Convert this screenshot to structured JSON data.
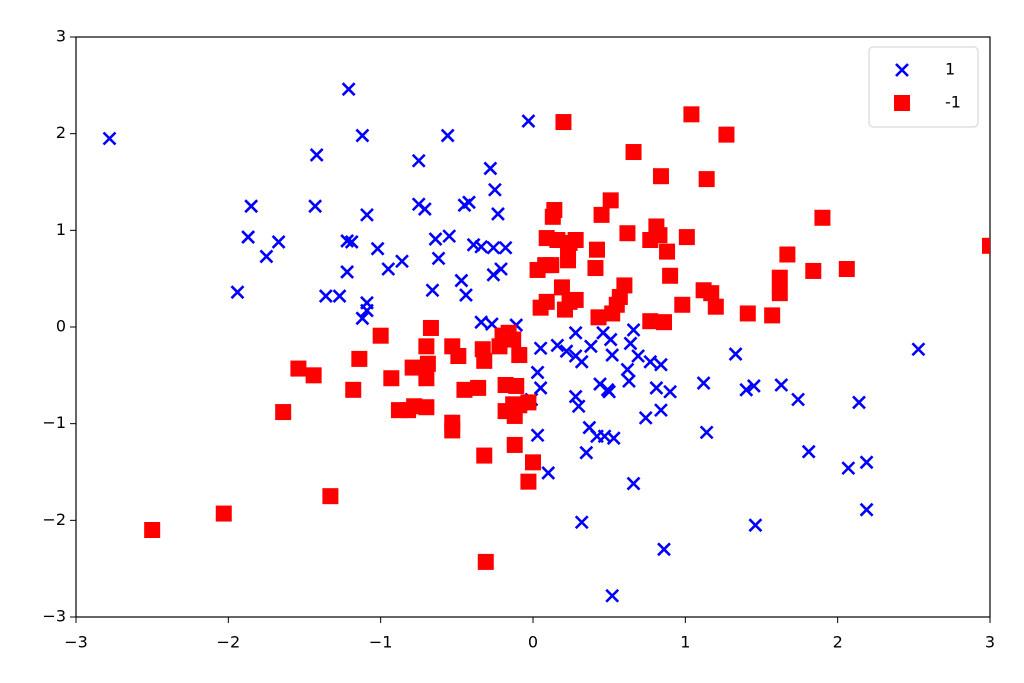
{
  "chart_data": {
    "type": "scatter",
    "legend": "upper right",
    "grid": false,
    "xlim": [
      -3,
      3
    ],
    "ylim": [
      -3,
      3
    ],
    "xticks": [
      {
        "value": -3,
        "label": "−3"
      },
      {
        "value": -2,
        "label": "−2"
      },
      {
        "value": -1,
        "label": "−1"
      },
      0,
      1,
      2,
      3
    ],
    "yticks": [
      {
        "value": -3,
        "label": "−3"
      },
      {
        "value": -2,
        "label": "−2"
      },
      {
        "value": -1,
        "label": "−1"
      },
      0,
      1,
      2,
      3
    ],
    "series": [
      {
        "name": "1",
        "color": "#0000ff",
        "marker": "x",
        "x": [
          -2.78,
          -1.21,
          -1.12,
          -1.42,
          -0.56,
          -0.03,
          -1.85,
          -1.87,
          -1.67,
          -1.75,
          -1.94,
          -1.43,
          -1.09,
          -1.22,
          -1.19,
          -1.22,
          -1.02,
          -0.95,
          -0.86,
          -1.36,
          -1.27,
          -1.09,
          -1.09,
          -1.12,
          -0.75,
          -0.75,
          -0.71,
          -0.64,
          -0.62,
          -0.55,
          -0.66,
          -0.45,
          -0.42,
          -0.47,
          -0.44,
          -0.39,
          -0.34,
          -0.28,
          -0.25,
          -0.23,
          -0.26,
          -0.18,
          -0.26,
          -0.21,
          -0.34,
          -0.27,
          -0.11,
          0.05,
          0.03,
          0.05,
          -0.01,
          0.03,
          0.1,
          0.16,
          0.22,
          0.28,
          0.28,
          0.32,
          0.38,
          0.28,
          0.3,
          0.37,
          0.42,
          0.35,
          0.32,
          0.44,
          0.49,
          0.46,
          0.51,
          0.52,
          0.5,
          0.47,
          0.53,
          0.52,
          0.64,
          0.66,
          0.69,
          0.62,
          0.63,
          0.77,
          0.81,
          0.84,
          0.74,
          0.84,
          0.9,
          0.66,
          0.86,
          1.12,
          1.14,
          1.33,
          1.4,
          1.45,
          1.46,
          1.63,
          1.74,
          1.81,
          2.14,
          2.07,
          2.19,
          2.19,
          2.53
        ],
        "values": [
          1.95,
          2.46,
          1.98,
          1.78,
          1.98,
          2.13,
          1.25,
          0.93,
          0.88,
          0.73,
          0.36,
          1.25,
          1.16,
          0.89,
          0.88,
          0.57,
          0.81,
          0.6,
          0.68,
          0.32,
          0.32,
          0.25,
          0.17,
          0.09,
          1.72,
          1.27,
          1.22,
          0.91,
          0.71,
          0.94,
          0.38,
          1.26,
          1.29,
          0.48,
          0.33,
          0.85,
          0.83,
          1.64,
          1.42,
          1.17,
          0.82,
          0.82,
          0.54,
          0.6,
          0.05,
          0.03,
          0.02,
          -0.22,
          -0.47,
          -0.63,
          -0.75,
          -1.12,
          -1.51,
          -0.19,
          -0.25,
          -0.3,
          -0.06,
          -0.36,
          -0.2,
          -0.72,
          -0.82,
          -1.04,
          -1.13,
          -1.3,
          -2.02,
          -0.59,
          -0.65,
          -0.06,
          -0.13,
          -0.29,
          -0.67,
          -1.13,
          -1.15,
          -2.78,
          -0.17,
          -0.03,
          -0.3,
          -0.44,
          -0.56,
          -0.36,
          -0.63,
          -0.39,
          -0.94,
          -0.86,
          -0.67,
          -1.62,
          -2.3,
          -0.58,
          -1.09,
          -0.28,
          -0.65,
          -0.61,
          -2.05,
          -0.6,
          -0.75,
          -1.29,
          -0.78,
          -1.46,
          -1.4,
          -1.89,
          -0.23
        ]
      },
      {
        "name": "-1",
        "color": "#ff0000",
        "marker": "s",
        "x": [
          -2.5,
          -2.03,
          -1.33,
          -1.64,
          -1.54,
          -1.44,
          -1.18,
          -1.14,
          -1.0,
          -0.93,
          -0.88,
          -0.82,
          -0.78,
          -0.7,
          -0.67,
          -0.7,
          -0.69,
          -0.7,
          -0.79,
          -0.53,
          -0.49,
          -0.53,
          -0.53,
          -0.45,
          -0.36,
          -0.33,
          -0.32,
          -0.32,
          -0.31,
          -0.22,
          -0.2,
          -0.16,
          -0.13,
          -0.09,
          -0.18,
          -0.11,
          -0.18,
          -0.13,
          -0.12,
          -0.09,
          -0.03,
          -0.12,
          0.0,
          -0.03,
          0.05,
          0.09,
          0.03,
          0.08,
          0.12,
          0.09,
          0.13,
          0.14,
          0.16,
          0.2,
          0.19,
          0.21,
          0.24,
          0.23,
          0.23,
          0.24,
          0.28,
          0.28,
          0.41,
          0.42,
          0.43,
          0.45,
          0.51,
          0.52,
          0.55,
          0.57,
          0.6,
          0.62,
          0.66,
          0.77,
          0.77,
          0.81,
          0.83,
          0.84,
          0.86,
          0.88,
          0.9,
          0.98,
          1.01,
          1.04,
          1.12,
          1.14,
          1.17,
          1.2,
          1.27,
          1.41,
          1.57,
          1.62,
          1.62,
          1.67,
          1.84,
          1.9,
          2.06,
          3.0
        ],
        "values": [
          -2.1,
          -1.93,
          -1.75,
          -0.88,
          -0.43,
          -0.5,
          -0.65,
          -0.33,
          -0.09,
          -0.53,
          -0.86,
          -0.86,
          -0.82,
          -0.83,
          -0.01,
          -0.2,
          -0.38,
          -0.53,
          -0.42,
          -0.2,
          -0.3,
          -0.99,
          -1.07,
          -0.65,
          -0.63,
          -0.23,
          -0.35,
          -1.33,
          -2.43,
          -0.2,
          -0.09,
          -0.06,
          -0.13,
          -0.29,
          -0.6,
          -0.61,
          -0.87,
          -0.8,
          -0.92,
          -0.81,
          -0.78,
          -1.22,
          -1.4,
          -1.6,
          0.2,
          0.26,
          0.59,
          0.64,
          0.64,
          0.92,
          1.14,
          1.21,
          0.9,
          2.12,
          0.41,
          0.18,
          0.26,
          0.69,
          0.8,
          0.87,
          0.9,
          0.28,
          0.61,
          0.8,
          0.1,
          1.16,
          1.31,
          0.14,
          0.23,
          0.31,
          0.43,
          0.97,
          1.81,
          0.06,
          0.9,
          1.04,
          0.95,
          1.56,
          0.05,
          0.78,
          0.53,
          0.23,
          0.93,
          2.2,
          0.38,
          1.53,
          0.35,
          0.21,
          1.99,
          0.14,
          0.12,
          0.51,
          0.35,
          0.75,
          0.58,
          1.13,
          0.6,
          0.84
        ]
      }
    ]
  }
}
